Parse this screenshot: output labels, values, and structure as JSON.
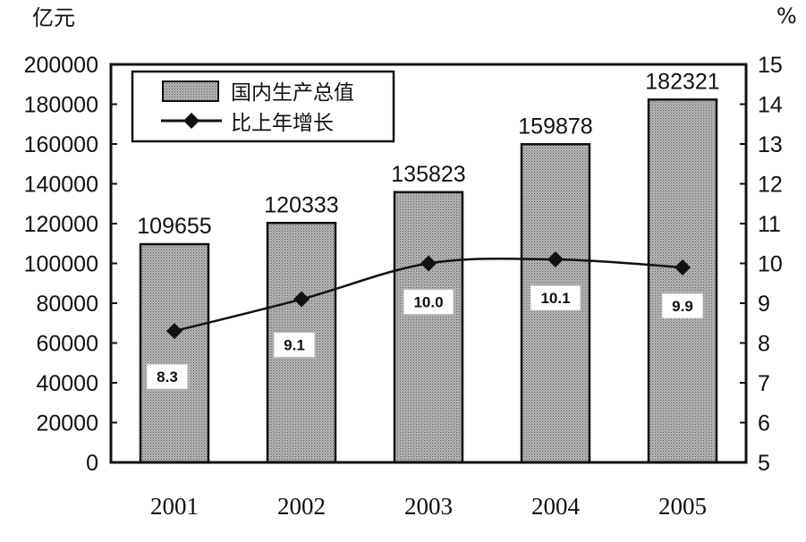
{
  "chart_data": {
    "type": "bar",
    "categories": [
      "2001",
      "2002",
      "2003",
      "2004",
      "2005"
    ],
    "series": [
      {
        "name": "国内生产总值",
        "type": "bar",
        "axis": "left",
        "values": [
          109655,
          120333,
          135823,
          159878,
          182321
        ]
      },
      {
        "name": "比上年增长",
        "type": "line",
        "axis": "right",
        "values": [
          8.3,
          9.1,
          10.0,
          10.1,
          9.9
        ],
        "labels": [
          "8.3",
          "9.1",
          "10.0",
          "10.1",
          "9.9"
        ]
      }
    ],
    "left_axis": {
      "unit": "亿元",
      "ylim": [
        0,
        200000
      ],
      "ticks": [
        "0",
        "20000",
        "40000",
        "60000",
        "80000",
        "100000",
        "120000",
        "140000",
        "160000",
        "180000",
        "200000"
      ]
    },
    "right_axis": {
      "unit": "%",
      "ylim": [
        5,
        15
      ],
      "ticks": [
        "5",
        "6",
        "7",
        "8",
        "9",
        "10",
        "11",
        "12",
        "13",
        "14",
        "15"
      ]
    },
    "legend_position": "top-left",
    "grid": false
  }
}
